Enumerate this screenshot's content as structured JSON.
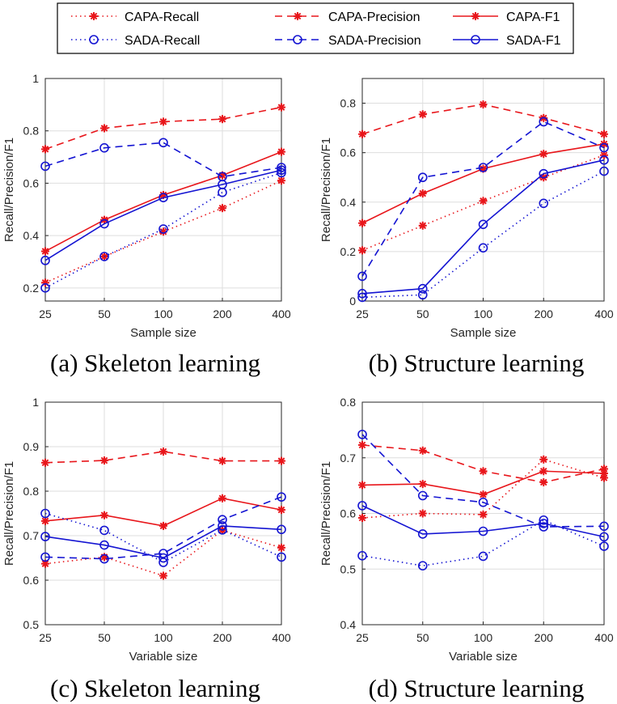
{
  "legend": {
    "entries": [
      {
        "key": "capa_recall",
        "label": "CAPA-Recall",
        "color": "#e8161b",
        "dash": "dot",
        "marker": "star"
      },
      {
        "key": "capa_precision",
        "label": "CAPA-Precision",
        "color": "#e8161b",
        "dash": "dash",
        "marker": "star"
      },
      {
        "key": "capa_f1",
        "label": "CAPA-F1",
        "color": "#e8161b",
        "dash": "solid",
        "marker": "star"
      },
      {
        "key": "sada_recall",
        "label": "SADA-Recall",
        "color": "#1414d2",
        "dash": "dot",
        "marker": "circle"
      },
      {
        "key": "sada_precision",
        "label": "SADA-Precision",
        "color": "#1414d2",
        "dash": "dash",
        "marker": "circle"
      },
      {
        "key": "sada_f1",
        "label": "SADA-F1",
        "color": "#1414d2",
        "dash": "solid",
        "marker": "circle"
      }
    ]
  },
  "chart_data": [
    {
      "type": "line",
      "caption": "(a) Skeleton learning",
      "xlabel": "Sample size",
      "ylabel": "Recall/Precision/F1",
      "categories": [
        "25",
        "50",
        "100",
        "200",
        "400"
      ],
      "ylim": [
        0.15,
        1
      ],
      "yticks": [
        0.2,
        0.4,
        0.6,
        0.8,
        1
      ],
      "ytick_labels": [
        "0.2",
        "0.4",
        "0.6",
        "0.8",
        "1"
      ],
      "grid": true,
      "series": [
        {
          "key": "capa_recall",
          "values": [
            0.22,
            0.32,
            0.415,
            0.505,
            0.61
          ]
        },
        {
          "key": "capa_precision",
          "values": [
            0.73,
            0.81,
            0.835,
            0.845,
            0.89
          ]
        },
        {
          "key": "capa_f1",
          "values": [
            0.34,
            0.46,
            0.555,
            0.63,
            0.72
          ]
        },
        {
          "key": "sada_recall",
          "values": [
            0.2,
            0.32,
            0.425,
            0.565,
            0.64
          ]
        },
        {
          "key": "sada_precision",
          "values": [
            0.665,
            0.735,
            0.755,
            0.625,
            0.66
          ]
        },
        {
          "key": "sada_f1",
          "values": [
            0.305,
            0.445,
            0.545,
            0.595,
            0.65
          ]
        }
      ]
    },
    {
      "type": "line",
      "caption": "(b) Structure learning",
      "xlabel": "Sample size",
      "ylabel": "Recall/Precision/F1",
      "categories": [
        "25",
        "50",
        "100",
        "200",
        "400"
      ],
      "ylim": [
        0,
        0.9
      ],
      "yticks": [
        0,
        0.2,
        0.4,
        0.6,
        0.8
      ],
      "ytick_labels": [
        "0",
        "0.2",
        "0.4",
        "0.6",
        "0.8"
      ],
      "grid": true,
      "series": [
        {
          "key": "capa_recall",
          "values": [
            0.205,
            0.305,
            0.405,
            0.5,
            0.59
          ]
        },
        {
          "key": "capa_precision",
          "values": [
            0.675,
            0.755,
            0.795,
            0.74,
            0.675
          ]
        },
        {
          "key": "capa_f1",
          "values": [
            0.315,
            0.435,
            0.535,
            0.595,
            0.635
          ]
        },
        {
          "key": "sada_recall",
          "values": [
            0.015,
            0.025,
            0.215,
            0.395,
            0.525
          ]
        },
        {
          "key": "sada_precision",
          "values": [
            0.1,
            0.5,
            0.54,
            0.725,
            0.62
          ]
        },
        {
          "key": "sada_f1",
          "values": [
            0.03,
            0.05,
            0.31,
            0.515,
            0.57
          ]
        }
      ]
    },
    {
      "type": "line",
      "caption": "(c) Skeleton learning",
      "xlabel": "Variable size",
      "ylabel": "Recall/Precision/F1",
      "categories": [
        "25",
        "50",
        "100",
        "200",
        "400"
      ],
      "ylim": [
        0.5,
        1
      ],
      "yticks": [
        0.5,
        0.6,
        0.7,
        0.8,
        0.9,
        1
      ],
      "ytick_labels": [
        "0.5",
        "0.6",
        "0.7",
        "0.8",
        "0.9",
        "1"
      ],
      "grid": true,
      "series": [
        {
          "key": "capa_recall",
          "values": [
            0.637,
            0.652,
            0.61,
            0.712,
            0.673
          ]
        },
        {
          "key": "capa_precision",
          "values": [
            0.864,
            0.869,
            0.889,
            0.868,
            0.868
          ]
        },
        {
          "key": "capa_f1",
          "values": [
            0.733,
            0.746,
            0.722,
            0.784,
            0.758
          ]
        },
        {
          "key": "sada_recall",
          "values": [
            0.75,
            0.712,
            0.64,
            0.713,
            0.652
          ]
        },
        {
          "key": "sada_precision",
          "values": [
            0.652,
            0.648,
            0.66,
            0.736,
            0.787
          ]
        },
        {
          "key": "sada_f1",
          "values": [
            0.698,
            0.679,
            0.65,
            0.722,
            0.714
          ]
        }
      ]
    },
    {
      "type": "line",
      "caption": "(d) Structure learning",
      "xlabel": "Variable size",
      "ylabel": "Recall/Precision/F1",
      "categories": [
        "25",
        "50",
        "100",
        "200",
        "400"
      ],
      "ylim": [
        0.4,
        0.8
      ],
      "yticks": [
        0.4,
        0.5,
        0.6,
        0.7,
        0.8
      ],
      "ytick_labels": [
        "0.4",
        "0.5",
        "0.6",
        "0.7",
        "0.8"
      ],
      "grid": true,
      "series": [
        {
          "key": "capa_recall",
          "values": [
            0.592,
            0.6,
            0.598,
            0.697,
            0.664
          ]
        },
        {
          "key": "capa_precision",
          "values": [
            0.723,
            0.713,
            0.676,
            0.656,
            0.68
          ]
        },
        {
          "key": "capa_f1",
          "values": [
            0.651,
            0.653,
            0.634,
            0.676,
            0.672
          ]
        },
        {
          "key": "sada_recall",
          "values": [
            0.524,
            0.506,
            0.523,
            0.588,
            0.541
          ]
        },
        {
          "key": "sada_precision",
          "values": [
            0.742,
            0.632,
            0.62,
            0.576,
            0.577
          ]
        },
        {
          "key": "sada_f1",
          "values": [
            0.614,
            0.563,
            0.568,
            0.582,
            0.558
          ]
        }
      ]
    }
  ]
}
